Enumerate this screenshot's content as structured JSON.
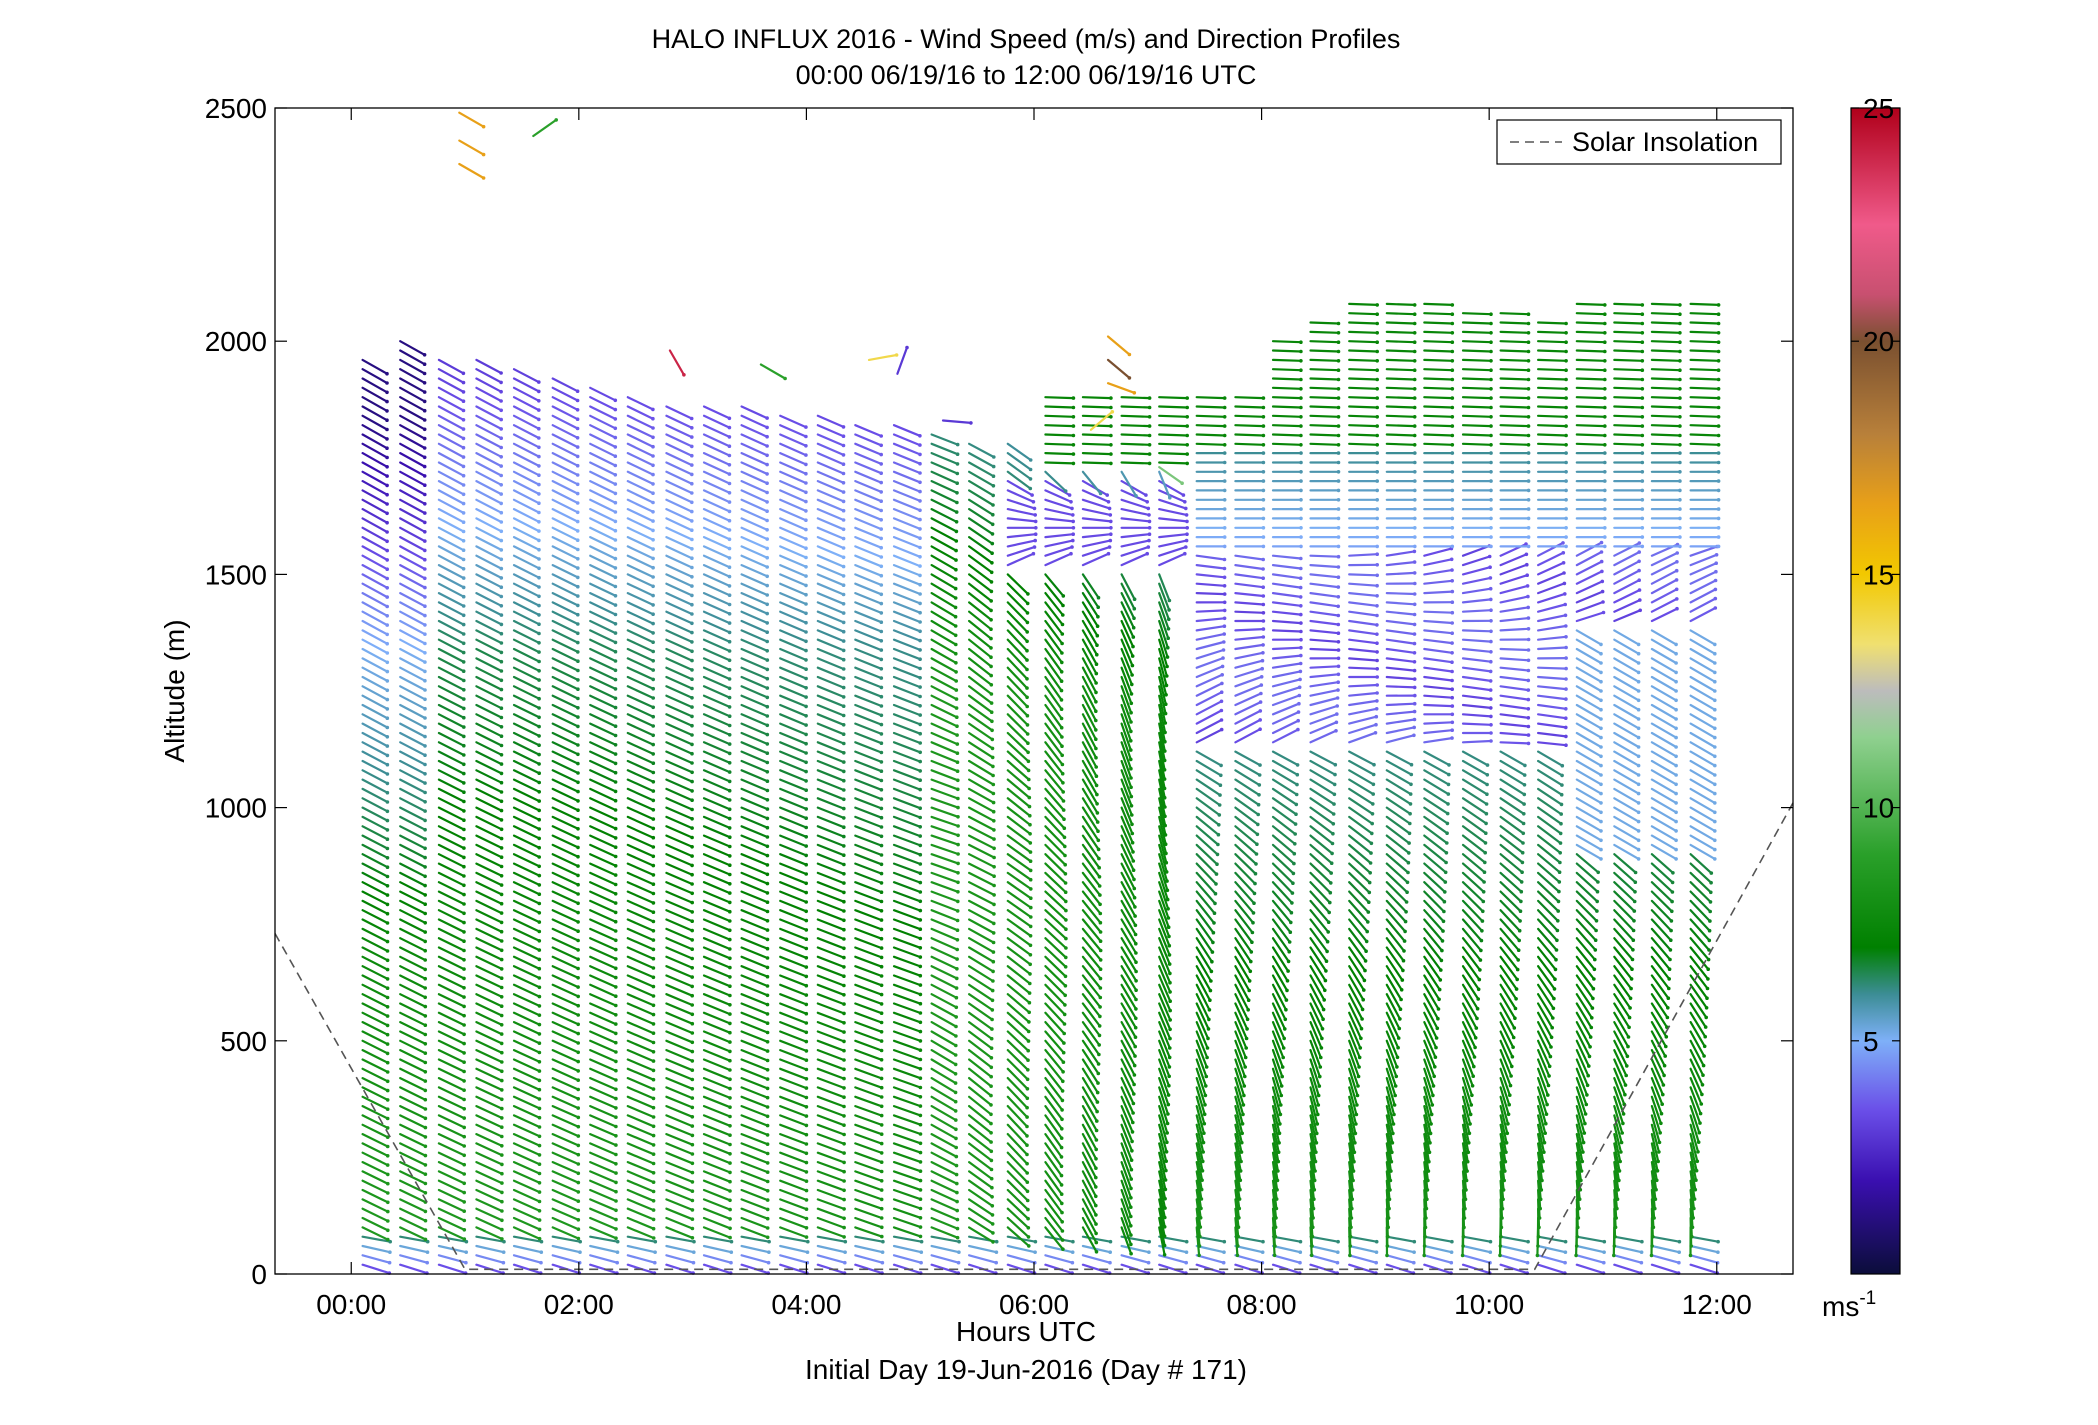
{
  "chart_data": {
    "type": "vector-profile",
    "title": "HALO INFLUX 2016 - Wind Speed (m/s) and Direction Profiles",
    "subtitle": "00:00 06/19/16 to 12:00 06/19/16  UTC",
    "xlabel": "Hours UTC",
    "xlabel2": "Initial Day 19-Jun-2016 (Day # 171)",
    "ylabel": "Altitude (m)",
    "xlim": [
      -0.67,
      12.67
    ],
    "ylim": [
      0,
      2500
    ],
    "x_ticks": [
      0,
      2,
      4,
      6,
      8,
      10,
      12
    ],
    "x_tick_labels": [
      "00:00",
      "02:00",
      "04:00",
      "06:00",
      "08:00",
      "10:00",
      "12:00"
    ],
    "y_ticks": [
      0,
      500,
      1000,
      1500,
      2000,
      2500
    ],
    "y_tick_labels": [
      "0",
      "500",
      "1000",
      "1500",
      "2000",
      "2500"
    ],
    "colorbar": {
      "range": [
        0,
        25
      ],
      "ticks": [
        5,
        10,
        15,
        20,
        25
      ],
      "tick_labels": [
        "5",
        "10",
        "15",
        "20",
        "25"
      ],
      "unit_base": "ms",
      "unit_exp": "-1",
      "stops": [
        [
          0,
          "#0b0d3a"
        ],
        [
          2,
          "#3a0fb0"
        ],
        [
          3.5,
          "#6a4ee8"
        ],
        [
          5,
          "#7eb0f8"
        ],
        [
          6,
          "#3c8d95"
        ],
        [
          7,
          "#008000"
        ],
        [
          9,
          "#2aa02a"
        ],
        [
          11.5,
          "#8fd08f"
        ],
        [
          12.5,
          "#bcbcbc"
        ],
        [
          13.5,
          "#f0e070"
        ],
        [
          15,
          "#f2c800"
        ],
        [
          16.5,
          "#e8a018"
        ],
        [
          18,
          "#b8803a"
        ],
        [
          20,
          "#7a5030"
        ],
        [
          21,
          "#c85070"
        ],
        [
          22.5,
          "#f05a8a"
        ],
        [
          25,
          "#b0001a"
        ]
      ]
    },
    "legend": {
      "entries": [
        "Solar Insolation"
      ],
      "placement": "top-right"
    },
    "solar_insolation": {
      "style": "dashed",
      "x": [
        -0.67,
        1.0,
        10.4,
        12.67
      ],
      "y": [
        730,
        10,
        10,
        1010
      ]
    },
    "profile_times": [
      0.1,
      0.43,
      0.77,
      1.1,
      1.43,
      1.77,
      2.1,
      2.43,
      2.77,
      3.1,
      3.43,
      3.77,
      4.1,
      4.43,
      4.77,
      5.1,
      5.43,
      5.77,
      6.1,
      6.43,
      6.77,
      7.1,
      7.43,
      7.77,
      8.1,
      8.43,
      8.77,
      9.1,
      9.43,
      9.77,
      10.1,
      10.43,
      10.77,
      11.1,
      11.43,
      11.77
    ],
    "profile_tops": [
      1960,
      2000,
      1960,
      1960,
      1940,
      1930,
      1900,
      1880,
      1870,
      1860,
      1860,
      1850,
      1840,
      1830,
      1820,
      1810,
      1790,
      1780,
      1880,
      1880,
      1880,
      1880,
      1880,
      1880,
      2000,
      2040,
      2080,
      2080,
      2080,
      2060,
      2060,
      2040,
      2080,
      2080,
      2080,
      2080
    ],
    "altitude_step": 20,
    "isolated_barbs": [
      {
        "t": 0.95,
        "z": 2490,
        "speed": 16.5,
        "dir": 300
      },
      {
        "t": 0.95,
        "z": 2430,
        "speed": 16.5,
        "dir": 300
      },
      {
        "t": 0.95,
        "z": 2380,
        "speed": 16.5,
        "dir": 300
      },
      {
        "t": 1.6,
        "z": 2440,
        "speed": 9,
        "dir": 235
      },
      {
        "t": 2.8,
        "z": 1980,
        "speed": 24,
        "dir": 330
      },
      {
        "t": 3.6,
        "z": 1950,
        "speed": 9,
        "dir": 300
      },
      {
        "t": 4.55,
        "z": 1960,
        "speed": 14,
        "dir": 260
      },
      {
        "t": 4.8,
        "z": 1930,
        "speed": 3,
        "dir": 200
      },
      {
        "t": 5.2,
        "z": 1830,
        "speed": 3,
        "dir": 275
      },
      {
        "t": 6.5,
        "z": 1810,
        "speed": 14,
        "dir": 230
      },
      {
        "t": 6.65,
        "z": 2010,
        "speed": 16.5,
        "dir": 310
      },
      {
        "t": 6.65,
        "z": 1960,
        "speed": 20,
        "dir": 310
      },
      {
        "t": 6.65,
        "z": 1910,
        "speed": 16.5,
        "dir": 290
      },
      {
        "t": 7.1,
        "z": 1730,
        "speed": 11,
        "dir": 305
      }
    ]
  }
}
